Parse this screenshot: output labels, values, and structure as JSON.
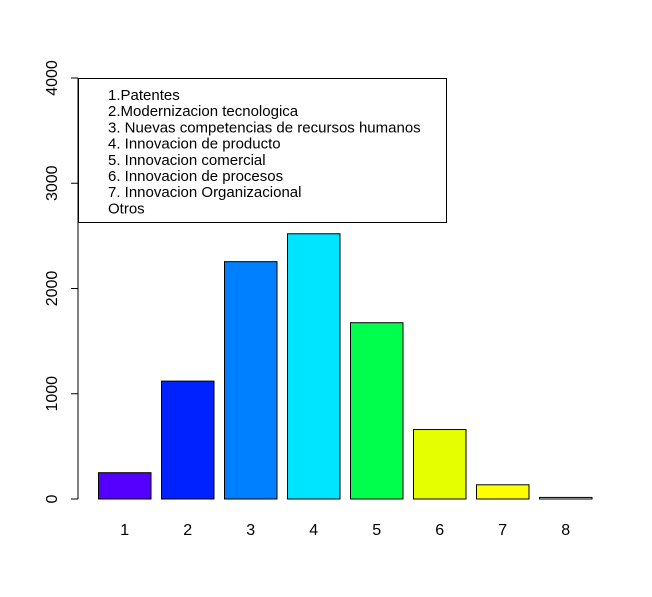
{
  "chart_data": {
    "type": "bar",
    "categories": [
      "1",
      "2",
      "3",
      "4",
      "5",
      "6",
      "7",
      "8"
    ],
    "values": [
      250,
      1120,
      2255,
      2520,
      1675,
      660,
      135,
      15
    ],
    "colors": [
      "#5500FF",
      "#0022FF",
      "#0080FF",
      "#00E5FF",
      "#00FF4D",
      "#E6FF00",
      "#FFFF00",
      "#FFFFFF"
    ],
    "yticks": [
      0,
      1000,
      2000,
      3000,
      4000
    ],
    "ylim": [
      0,
      4000
    ],
    "title": "",
    "xlabel": "",
    "ylabel": "",
    "grid": false,
    "legend_position": "top-left",
    "legend": [
      "1.Patentes",
      "2.Modernizacion tecnologica",
      "3. Nuevas competencias de recursos humanos",
      "4. Innovacion de producto",
      "5. Innovacion comercial",
      "6. Innovacion de procesos",
      "7. Innovacion Organizacional",
      "Otros"
    ]
  }
}
